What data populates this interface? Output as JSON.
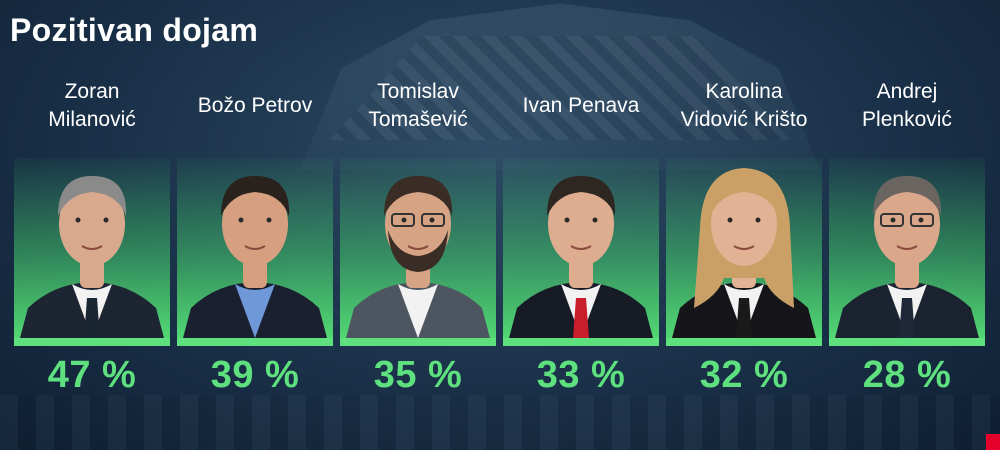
{
  "title": "Pozitivan dojam",
  "chart_data": {
    "type": "bar",
    "title": "Pozitivan dojam",
    "unit": "%",
    "categories": [
      [
        "Zoran",
        "Milanović"
      ],
      [
        "Božo Petrov"
      ],
      [
        "Tomislav",
        "Tomašević"
      ],
      [
        "Ivan Penava"
      ],
      [
        "Karolina",
        "Vidović Krišto"
      ],
      [
        "Andrej",
        "Plenković"
      ]
    ],
    "values": [
      47,
      39,
      35,
      33,
      32,
      28
    ],
    "value_labels": [
      "47 %",
      "39 %",
      "35 %",
      "33 %",
      "32 %",
      "28 %"
    ],
    "colors": {
      "accent": "#5fe07f",
      "background": "#1a3149"
    }
  },
  "people": [
    {
      "hair": "#8a8a8a",
      "skin": "#d9a98d",
      "suit": "#1d2533",
      "shirt": "#f2f2f2",
      "tie": "#1b2633"
    },
    {
      "hair": "#2a221d",
      "skin": "#d6a080",
      "suit": "#1a2030",
      "shirt": "#6f98d8",
      "tie": ""
    },
    {
      "hair": "#3a2d25",
      "skin": "#d7a385",
      "suit": "#4d5560",
      "shirt": "#f2f2f2",
      "tie": ""
    },
    {
      "hair": "#2e2620",
      "skin": "#deac8e",
      "suit": "#161b26",
      "shirt": "#f2f2f2",
      "tie": "#c81d2a"
    },
    {
      "hair": "#caa066",
      "skin": "#e2b295",
      "suit": "#15151a",
      "shirt": "#f2f2f2",
      "tie": "#1a1a1a"
    },
    {
      "hair": "#6a6560",
      "skin": "#dba78b",
      "suit": "#1c2330",
      "shirt": "#f2f2f2",
      "tie": "#1e2838"
    }
  ]
}
